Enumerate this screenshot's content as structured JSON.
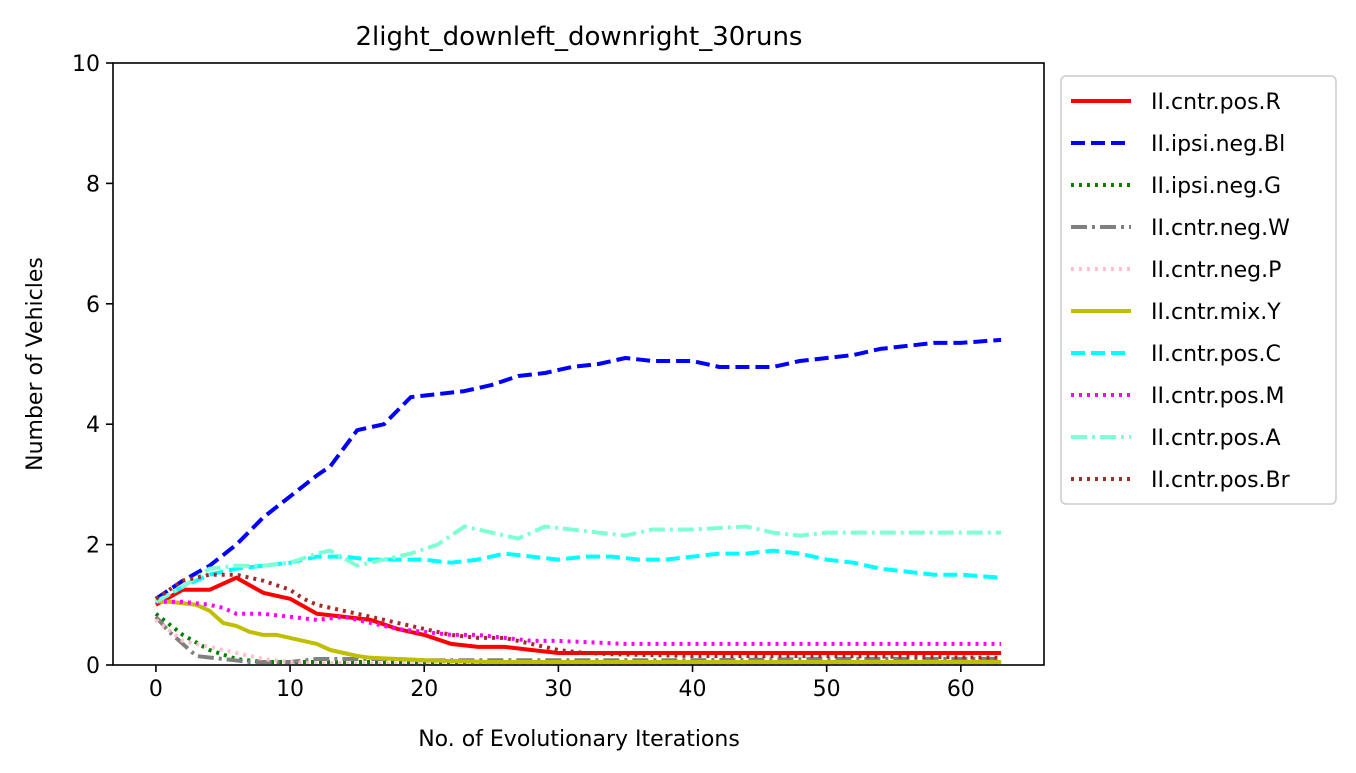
{
  "chart_data": {
    "type": "line",
    "title": "2light_downleft_downright_30runs",
    "xlabel": "No. of Evolutionary Iterations",
    "ylabel": "Number of Vehicles",
    "xlim": [
      -3.2,
      66.2
    ],
    "ylim": [
      0,
      10
    ],
    "xticks": [
      0,
      10,
      20,
      30,
      40,
      50,
      60
    ],
    "yticks": [
      0,
      2,
      4,
      6,
      8,
      10
    ],
    "grid": false,
    "legend_position": "outside-right",
    "series": [
      {
        "name": "II.cntr.pos.R",
        "color": "#ff0000",
        "dash": "solid",
        "points": [
          [
            0,
            1.0
          ],
          [
            2,
            1.25
          ],
          [
            4,
            1.25
          ],
          [
            6,
            1.45
          ],
          [
            8,
            1.2
          ],
          [
            10,
            1.1
          ],
          [
            12,
            0.85
          ],
          [
            14,
            0.8
          ],
          [
            16,
            0.75
          ],
          [
            18,
            0.6
          ],
          [
            20,
            0.5
          ],
          [
            22,
            0.35
          ],
          [
            24,
            0.3
          ],
          [
            26,
            0.3
          ],
          [
            28,
            0.25
          ],
          [
            30,
            0.2
          ],
          [
            35,
            0.2
          ],
          [
            40,
            0.2
          ],
          [
            50,
            0.2
          ],
          [
            63,
            0.2
          ]
        ]
      },
      {
        "name": "II.ipsi.neg.Bl",
        "color": "#0000ff",
        "dash": "dashed",
        "points": [
          [
            0,
            1.1
          ],
          [
            2,
            1.4
          ],
          [
            4,
            1.65
          ],
          [
            6,
            2.0
          ],
          [
            8,
            2.45
          ],
          [
            10,
            2.8
          ],
          [
            12,
            3.15
          ],
          [
            13,
            3.3
          ],
          [
            15,
            3.9
          ],
          [
            17,
            4.0
          ],
          [
            19,
            4.45
          ],
          [
            21,
            4.5
          ],
          [
            23,
            4.55
          ],
          [
            25,
            4.65
          ],
          [
            27,
            4.8
          ],
          [
            29,
            4.85
          ],
          [
            31,
            4.95
          ],
          [
            33,
            5.0
          ],
          [
            35,
            5.1
          ],
          [
            37,
            5.05
          ],
          [
            40,
            5.05
          ],
          [
            42,
            4.95
          ],
          [
            44,
            4.95
          ],
          [
            46,
            4.95
          ],
          [
            48,
            5.05
          ],
          [
            50,
            5.1
          ],
          [
            52,
            5.15
          ],
          [
            54,
            5.25
          ],
          [
            56,
            5.3
          ],
          [
            58,
            5.35
          ],
          [
            60,
            5.35
          ],
          [
            63,
            5.4
          ]
        ]
      },
      {
        "name": "II.ipsi.neg.G",
        "color": "#008000",
        "dash": "dotted",
        "points": [
          [
            0,
            0.85
          ],
          [
            2,
            0.5
          ],
          [
            4,
            0.25
          ],
          [
            6,
            0.1
          ],
          [
            8,
            0.05
          ],
          [
            10,
            0.05
          ],
          [
            12,
            0.05
          ],
          [
            14,
            0.05
          ],
          [
            16,
            0.05
          ],
          [
            20,
            0.05
          ],
          [
            30,
            0.05
          ],
          [
            40,
            0.05
          ],
          [
            50,
            0.05
          ],
          [
            63,
            0.05
          ]
        ]
      },
      {
        "name": "II.cntr.neg.W",
        "color": "#808080",
        "dash": "dashdot",
        "points": [
          [
            0,
            0.8
          ],
          [
            1,
            0.55
          ],
          [
            2,
            0.35
          ],
          [
            3,
            0.15
          ],
          [
            5,
            0.1
          ],
          [
            7,
            0.05
          ],
          [
            10,
            0.05
          ],
          [
            12,
            0.1
          ],
          [
            14,
            0.1
          ],
          [
            16,
            0.1
          ],
          [
            18,
            0.1
          ],
          [
            20,
            0.08
          ],
          [
            25,
            0.08
          ],
          [
            30,
            0.08
          ],
          [
            40,
            0.08
          ],
          [
            50,
            0.1
          ],
          [
            63,
            0.1
          ]
        ]
      },
      {
        "name": "II.cntr.neg.P",
        "color": "#ffc0cb",
        "dash": "dotted",
        "points": [
          [
            0,
            0.75
          ],
          [
            2,
            0.4
          ],
          [
            4,
            0.3
          ],
          [
            6,
            0.2
          ],
          [
            8,
            0.1
          ],
          [
            10,
            0.05
          ],
          [
            12,
            0.03
          ],
          [
            14,
            0.03
          ],
          [
            20,
            0.03
          ],
          [
            30,
            0.03
          ],
          [
            40,
            0.03
          ],
          [
            50,
            0.03
          ],
          [
            63,
            0.03
          ]
        ]
      },
      {
        "name": "II.cntr.mix.Y",
        "color": "#bfbf00",
        "dash": "solid",
        "points": [
          [
            0,
            1.05
          ],
          [
            1,
            1.05
          ],
          [
            3,
            1.0
          ],
          [
            4,
            0.9
          ],
          [
            5,
            0.7
          ],
          [
            6,
            0.65
          ],
          [
            7,
            0.55
          ],
          [
            8,
            0.5
          ],
          [
            9,
            0.5
          ],
          [
            10,
            0.45
          ],
          [
            11,
            0.4
          ],
          [
            12,
            0.35
          ],
          [
            13,
            0.25
          ],
          [
            14,
            0.2
          ],
          [
            15,
            0.15
          ],
          [
            16,
            0.12
          ],
          [
            18,
            0.1
          ],
          [
            20,
            0.08
          ],
          [
            25,
            0.05
          ],
          [
            30,
            0.05
          ],
          [
            40,
            0.05
          ],
          [
            50,
            0.05
          ],
          [
            63,
            0.05
          ]
        ]
      },
      {
        "name": "II.cntr.pos.C",
        "color": "#00ffff",
        "dash": "dashed",
        "points": [
          [
            0,
            1.05
          ],
          [
            2,
            1.3
          ],
          [
            4,
            1.5
          ],
          [
            6,
            1.6
          ],
          [
            8,
            1.65
          ],
          [
            10,
            1.7
          ],
          [
            12,
            1.8
          ],
          [
            14,
            1.8
          ],
          [
            16,
            1.75
          ],
          [
            18,
            1.75
          ],
          [
            20,
            1.75
          ],
          [
            22,
            1.7
          ],
          [
            24,
            1.75
          ],
          [
            26,
            1.85
          ],
          [
            28,
            1.8
          ],
          [
            30,
            1.75
          ],
          [
            32,
            1.8
          ],
          [
            34,
            1.8
          ],
          [
            36,
            1.75
          ],
          [
            38,
            1.75
          ],
          [
            40,
            1.8
          ],
          [
            42,
            1.85
          ],
          [
            44,
            1.85
          ],
          [
            46,
            1.9
          ],
          [
            48,
            1.85
          ],
          [
            50,
            1.75
          ],
          [
            52,
            1.7
          ],
          [
            54,
            1.6
          ],
          [
            56,
            1.55
          ],
          [
            58,
            1.5
          ],
          [
            60,
            1.5
          ],
          [
            63,
            1.45
          ]
        ]
      },
      {
        "name": "II.cntr.pos.M",
        "color": "#ff00ff",
        "dash": "dotted",
        "points": [
          [
            0,
            1.05
          ],
          [
            2,
            1.05
          ],
          [
            4,
            1.0
          ],
          [
            5,
            0.95
          ],
          [
            6,
            0.85
          ],
          [
            8,
            0.85
          ],
          [
            10,
            0.8
          ],
          [
            12,
            0.75
          ],
          [
            14,
            0.8
          ],
          [
            16,
            0.7
          ],
          [
            18,
            0.6
          ],
          [
            20,
            0.55
          ],
          [
            22,
            0.5
          ],
          [
            24,
            0.5
          ],
          [
            26,
            0.45
          ],
          [
            28,
            0.4
          ],
          [
            30,
            0.4
          ],
          [
            32,
            0.38
          ],
          [
            35,
            0.35
          ],
          [
            40,
            0.35
          ],
          [
            50,
            0.35
          ],
          [
            63,
            0.35
          ]
        ]
      },
      {
        "name": "II.cntr.pos.A",
        "color": "#7fffd4",
        "dash": "dashdot",
        "points": [
          [
            0,
            1.05
          ],
          [
            2,
            1.3
          ],
          [
            4,
            1.6
          ],
          [
            6,
            1.65
          ],
          [
            8,
            1.65
          ],
          [
            10,
            1.7
          ],
          [
            12,
            1.85
          ],
          [
            13,
            1.9
          ],
          [
            15,
            1.65
          ],
          [
            17,
            1.75
          ],
          [
            19,
            1.85
          ],
          [
            21,
            2.0
          ],
          [
            23,
            2.3
          ],
          [
            25,
            2.2
          ],
          [
            27,
            2.1
          ],
          [
            29,
            2.3
          ],
          [
            31,
            2.25
          ],
          [
            33,
            2.2
          ],
          [
            35,
            2.15
          ],
          [
            37,
            2.25
          ],
          [
            40,
            2.25
          ],
          [
            44,
            2.3
          ],
          [
            46,
            2.2
          ],
          [
            48,
            2.15
          ],
          [
            50,
            2.2
          ],
          [
            55,
            2.2
          ],
          [
            60,
            2.2
          ],
          [
            63,
            2.2
          ]
        ]
      },
      {
        "name": "II.cntr.pos.Br",
        "color": "#a52a2a",
        "dash": "dotted",
        "points": [
          [
            0,
            1.1
          ],
          [
            2,
            1.4
          ],
          [
            4,
            1.5
          ],
          [
            6,
            1.5
          ],
          [
            8,
            1.4
          ],
          [
            10,
            1.25
          ],
          [
            11,
            1.1
          ],
          [
            12,
            1.0
          ],
          [
            14,
            0.9
          ],
          [
            16,
            0.8
          ],
          [
            18,
            0.7
          ],
          [
            20,
            0.6
          ],
          [
            22,
            0.5
          ],
          [
            24,
            0.45
          ],
          [
            26,
            0.45
          ],
          [
            28,
            0.35
          ],
          [
            30,
            0.25
          ],
          [
            32,
            0.2
          ],
          [
            34,
            0.18
          ],
          [
            40,
            0.15
          ],
          [
            50,
            0.15
          ],
          [
            63,
            0.12
          ]
        ]
      }
    ]
  }
}
